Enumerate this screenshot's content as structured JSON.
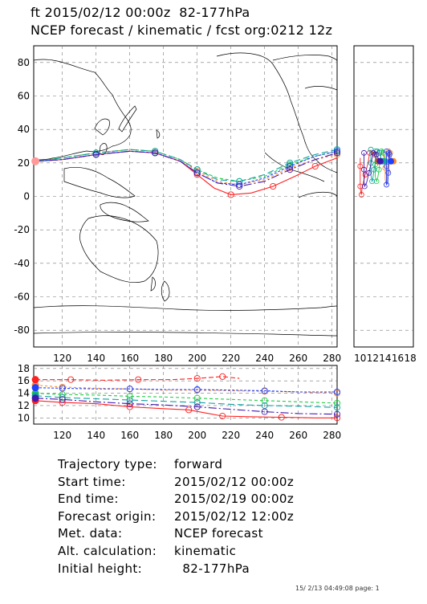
{
  "header": {
    "line1": "ft 2015/02/12 00:00z  82-177hPa",
    "line2": "NCEP forecast / kinematic / fcst org:0212 12z"
  },
  "map_panel": {
    "y_ticks": [
      "80",
      "60",
      "40",
      "20",
      "0",
      "-20",
      "-40",
      "-60",
      "-80"
    ],
    "x_ticks": [
      "120",
      "140",
      "160",
      "180",
      "200",
      "220",
      "240",
      "260",
      "280"
    ]
  },
  "side_panel": {
    "x_ticks": [
      "10",
      "12",
      "14",
      "16",
      "18"
    ]
  },
  "height_panel": {
    "y_ticks": [
      "18",
      "16",
      "14",
      "12",
      "10"
    ],
    "x_ticks": [
      "120",
      "140",
      "160",
      "180",
      "200",
      "220",
      "240",
      "260",
      "280"
    ]
  },
  "info": {
    "rows": [
      {
        "k": "Trajectory type:",
        "v": "forward"
      },
      {
        "k": "Start time:",
        "v": "2015/02/12 00:00z"
      },
      {
        "k": "End time:",
        "v": "2015/02/19 00:00z"
      },
      {
        "k": "Forecast origin:",
        "v": "2015/02/12 12:00z"
      },
      {
        "k": "Met. data:",
        "v": "NCEP forecast"
      },
      {
        "k": "Alt. calculation:",
        "v": "kinematic"
      },
      {
        "k": "Initial height:",
        "v": "  82-177hPa"
      }
    ]
  },
  "footer": {
    "stamp": "15/ 2/13 04:49:08 page: 1"
  },
  "colors": {
    "red": "#ff2020",
    "orange": "#ff8c2a",
    "green": "#22cc44",
    "teal": "#10a0a0",
    "blue": "#2040ff",
    "purple": "#4018b0"
  },
  "chart_data": {
    "type": "line",
    "xlim": [
      103,
      283
    ],
    "ylim": [
      -90,
      90
    ],
    "height_ylim": [
      9,
      18.5
    ],
    "series": [
      {
        "color": "red",
        "dash": "none",
        "lonlat": [
          [
            104,
            21
          ],
          [
            120,
            22
          ],
          [
            140,
            25
          ],
          [
            160,
            27
          ],
          [
            175,
            26
          ],
          [
            190,
            21
          ],
          [
            200,
            13
          ],
          [
            210,
            5
          ],
          [
            220,
            1
          ],
          [
            232,
            2
          ],
          [
            245,
            6
          ],
          [
            258,
            12
          ],
          [
            270,
            18
          ],
          [
            283,
            23
          ]
        ],
        "height": [
          [
            104,
            12.8
          ],
          [
            120,
            12.5
          ],
          [
            140,
            12.3
          ],
          [
            160,
            11.8
          ],
          [
            180,
            11.5
          ],
          [
            195,
            11.3
          ],
          [
            205,
            10.8
          ],
          [
            215,
            10.3
          ],
          [
            230,
            10.2
          ],
          [
            250,
            10.1
          ],
          [
            270,
            10
          ],
          [
            283,
            10
          ]
        ]
      },
      {
        "color": "orange",
        "dash": "3,3",
        "lonlat": [
          [
            104,
            21
          ],
          [
            120,
            23
          ],
          [
            140,
            26
          ],
          [
            160,
            28
          ],
          [
            175,
            27
          ],
          [
            190,
            22
          ],
          [
            200,
            15
          ],
          [
            212,
            9
          ],
          [
            225,
            7
          ],
          [
            240,
            10
          ],
          [
            255,
            17
          ],
          [
            270,
            22
          ],
          [
            283,
            25
          ]
        ],
        "height": [
          [
            104,
            15.3
          ],
          [
            120,
            15
          ],
          [
            140,
            14.8
          ],
          [
            160,
            14.7
          ],
          [
            180,
            14.5
          ],
          [
            200,
            14.5
          ],
          [
            220,
            14.4
          ],
          [
            240,
            14.3
          ],
          [
            260,
            14.2
          ],
          [
            283,
            14
          ]
        ]
      },
      {
        "color": "green",
        "dash": "4,3",
        "lonlat": [
          [
            104,
            21
          ],
          [
            120,
            23
          ],
          [
            140,
            26
          ],
          [
            160,
            28
          ],
          [
            175,
            27
          ],
          [
            190,
            22
          ],
          [
            200,
            16
          ],
          [
            212,
            11
          ],
          [
            225,
            9
          ],
          [
            240,
            12
          ],
          [
            255,
            19
          ],
          [
            270,
            24
          ],
          [
            283,
            27
          ]
        ],
        "height": [
          [
            104,
            14
          ],
          [
            120,
            13.8
          ],
          [
            140,
            13.7
          ],
          [
            160,
            13.5
          ],
          [
            180,
            13.4
          ],
          [
            200,
            13.2
          ],
          [
            220,
            13
          ],
          [
            240,
            12.8
          ],
          [
            260,
            12.6
          ],
          [
            283,
            12.4
          ]
        ]
      },
      {
        "color": "teal",
        "dash": "8,4",
        "lonlat": [
          [
            104,
            21
          ],
          [
            120,
            23
          ],
          [
            140,
            26
          ],
          [
            160,
            28
          ],
          [
            175,
            27
          ],
          [
            190,
            22
          ],
          [
            200,
            16
          ],
          [
            212,
            10
          ],
          [
            225,
            9
          ],
          [
            240,
            13
          ],
          [
            255,
            20
          ],
          [
            270,
            25
          ],
          [
            283,
            28
          ]
        ],
        "height": [
          [
            104,
            13.6
          ],
          [
            120,
            13.3
          ],
          [
            140,
            13.1
          ],
          [
            160,
            12.9
          ],
          [
            180,
            12.7
          ],
          [
            200,
            12.5
          ],
          [
            220,
            12.2
          ],
          [
            240,
            12
          ],
          [
            260,
            11.9
          ],
          [
            283,
            11.7
          ]
        ]
      },
      {
        "color": "blue",
        "dash": "3,2",
        "lonlat": [
          [
            104,
            21
          ],
          [
            120,
            22
          ],
          [
            140,
            25
          ],
          [
            160,
            27
          ],
          [
            175,
            26
          ],
          [
            190,
            21
          ],
          [
            200,
            14
          ],
          [
            212,
            8
          ],
          [
            225,
            7
          ],
          [
            240,
            11
          ],
          [
            255,
            18
          ],
          [
            270,
            24
          ],
          [
            283,
            27
          ]
        ],
        "height": [
          [
            104,
            14.9
          ],
          [
            120,
            14.8
          ],
          [
            140,
            14.7
          ],
          [
            160,
            14.7
          ],
          [
            180,
            14.6
          ],
          [
            200,
            14.6
          ],
          [
            220,
            14.5
          ],
          [
            240,
            14.4
          ],
          [
            260,
            14.2
          ],
          [
            283,
            14.2
          ]
        ]
      },
      {
        "color": "purple",
        "dash": "10,3,2,3",
        "lonlat": [
          [
            104,
            21
          ],
          [
            120,
            22
          ],
          [
            140,
            25
          ],
          [
            160,
            27
          ],
          [
            175,
            26
          ],
          [
            190,
            21
          ],
          [
            200,
            14
          ],
          [
            212,
            8
          ],
          [
            225,
            6
          ],
          [
            240,
            9
          ],
          [
            255,
            16
          ],
          [
            270,
            22
          ],
          [
            283,
            26
          ]
        ],
        "height": [
          [
            104,
            13.2
          ],
          [
            120,
            13
          ],
          [
            140,
            12.6
          ],
          [
            160,
            12.3
          ],
          [
            180,
            12.1
          ],
          [
            200,
            11.8
          ],
          [
            220,
            11.4
          ],
          [
            240,
            11
          ],
          [
            260,
            10.7
          ],
          [
            283,
            10.6
          ]
        ]
      },
      {
        "color": "red",
        "dash": "6,3",
        "lonlat": [],
        "height": [
          [
            104,
            16.2
          ],
          [
            125,
            16.2
          ],
          [
            145,
            16.1
          ],
          [
            165,
            16.2
          ],
          [
            185,
            16.2
          ],
          [
            200,
            16.4
          ],
          [
            210,
            16.6
          ],
          [
            215,
            16.7
          ],
          [
            225,
            16.4
          ]
        ]
      }
    ]
  }
}
